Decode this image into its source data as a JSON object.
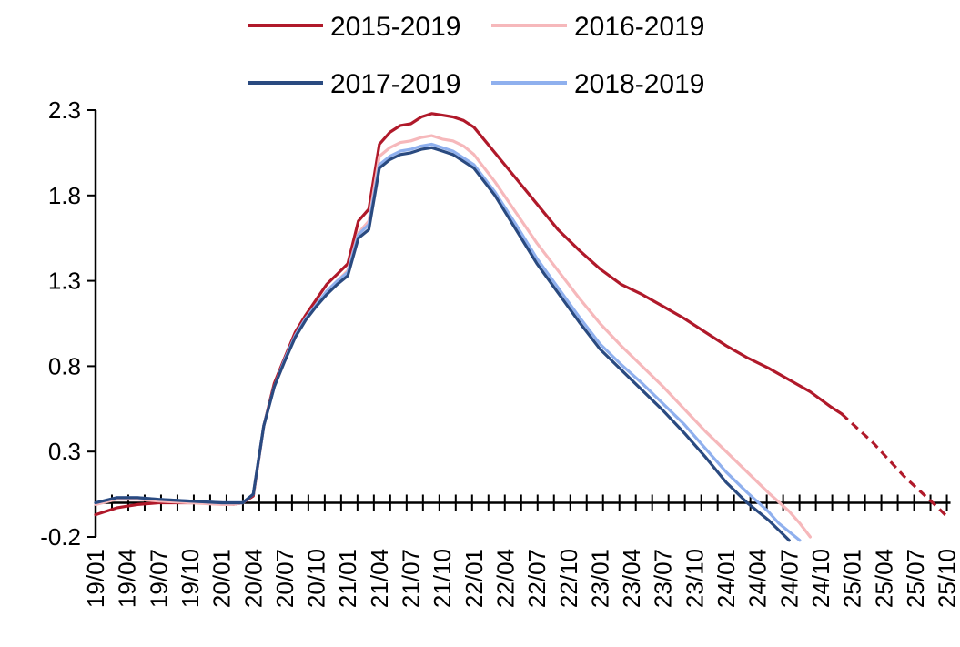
{
  "chart_data": {
    "type": "line",
    "title": "",
    "xlabel": "",
    "ylabel": "",
    "ylim": [
      -0.2,
      2.3
    ],
    "yticks": [
      "2.3",
      "1.8",
      "1.3",
      "0.8",
      "0.3",
      "-0.2"
    ],
    "ytick_values": [
      2.3,
      1.8,
      1.3,
      0.8,
      0.3,
      -0.2
    ],
    "xticks": [
      "19/01",
      "19/04",
      "19/07",
      "19/10",
      "20/01",
      "20/04",
      "20/07",
      "20/10",
      "21/01",
      "21/04",
      "21/07",
      "21/10",
      "22/01",
      "22/04",
      "22/07",
      "22/10",
      "23/01",
      "23/04",
      "23/07",
      "23/10",
      "24/01",
      "24/04",
      "24/07",
      "24/10",
      "25/01",
      "25/04",
      "25/07",
      "25/10"
    ],
    "xaxis_crosses_y": 0,
    "grid": false,
    "legend": "top",
    "x_unit": "months since 19/01",
    "series": [
      {
        "name": "2015-2019",
        "color": "#b0192a",
        "points": [
          [
            0,
            -0.07
          ],
          [
            1,
            -0.05
          ],
          [
            2,
            -0.03
          ],
          [
            3,
            -0.02
          ],
          [
            4,
            -0.01
          ],
          [
            6,
            0.0
          ],
          [
            9,
            0.0
          ],
          [
            12,
            0.0
          ],
          [
            13,
            -0.01
          ],
          [
            14,
            0.0
          ],
          [
            15,
            0.04
          ],
          [
            16,
            0.45
          ],
          [
            17,
            0.7
          ],
          [
            18,
            0.85
          ],
          [
            19,
            1.0
          ],
          [
            20,
            1.1
          ],
          [
            21,
            1.19
          ],
          [
            22,
            1.28
          ],
          [
            23,
            1.34
          ],
          [
            24,
            1.4
          ],
          [
            25,
            1.65
          ],
          [
            26,
            1.72
          ],
          [
            27,
            2.1
          ],
          [
            28,
            2.17
          ],
          [
            29,
            2.21
          ],
          [
            30,
            2.22
          ],
          [
            31,
            2.26
          ],
          [
            32,
            2.28
          ],
          [
            33,
            2.27
          ],
          [
            34,
            2.26
          ],
          [
            35,
            2.24
          ],
          [
            36,
            2.2
          ],
          [
            38,
            2.05
          ],
          [
            40,
            1.9
          ],
          [
            42,
            1.75
          ],
          [
            44,
            1.6
          ],
          [
            46,
            1.48
          ],
          [
            48,
            1.37
          ],
          [
            50,
            1.28
          ],
          [
            52,
            1.22
          ],
          [
            54,
            1.15
          ],
          [
            56,
            1.08
          ],
          [
            58,
            1.0
          ],
          [
            60,
            0.92
          ],
          [
            62,
            0.85
          ],
          [
            64,
            0.79
          ],
          [
            66,
            0.72
          ],
          [
            68,
            0.65
          ],
          [
            70,
            0.56
          ],
          [
            71,
            0.52
          ]
        ],
        "projection": [
          [
            71,
            0.52
          ],
          [
            74,
            0.35
          ],
          [
            77,
            0.15
          ],
          [
            80,
            -0.02
          ],
          [
            81,
            -0.08
          ]
        ]
      },
      {
        "name": "2016-2019",
        "color": "#f6b8bb",
        "points": [
          [
            0,
            -0.01
          ],
          [
            2,
            0.02
          ],
          [
            4,
            0.02
          ],
          [
            6,
            0.01
          ],
          [
            9,
            0.0
          ],
          [
            12,
            -0.01
          ],
          [
            13,
            -0.01
          ],
          [
            14,
            0.0
          ],
          [
            15,
            0.05
          ],
          [
            16,
            0.45
          ],
          [
            17,
            0.68
          ],
          [
            18,
            0.83
          ],
          [
            19,
            0.98
          ],
          [
            20,
            1.08
          ],
          [
            21,
            1.16
          ],
          [
            22,
            1.24
          ],
          [
            23,
            1.3
          ],
          [
            24,
            1.36
          ],
          [
            25,
            1.58
          ],
          [
            26,
            1.65
          ],
          [
            27,
            2.03
          ],
          [
            28,
            2.08
          ],
          [
            29,
            2.11
          ],
          [
            30,
            2.12
          ],
          [
            31,
            2.14
          ],
          [
            32,
            2.15
          ],
          [
            33,
            2.13
          ],
          [
            34,
            2.12
          ],
          [
            35,
            2.09
          ],
          [
            36,
            2.04
          ],
          [
            38,
            1.88
          ],
          [
            40,
            1.7
          ],
          [
            42,
            1.52
          ],
          [
            44,
            1.36
          ],
          [
            46,
            1.2
          ],
          [
            48,
            1.05
          ],
          [
            50,
            0.92
          ],
          [
            52,
            0.8
          ],
          [
            54,
            0.68
          ],
          [
            56,
            0.55
          ],
          [
            58,
            0.42
          ],
          [
            60,
            0.3
          ],
          [
            62,
            0.18
          ],
          [
            64,
            0.06
          ],
          [
            66,
            -0.05
          ],
          [
            67,
            -0.12
          ],
          [
            68,
            -0.2
          ]
        ]
      },
      {
        "name": "2017-2019",
        "color": "#2a4a80",
        "points": [
          [
            0,
            0.0
          ],
          [
            2,
            0.03
          ],
          [
            4,
            0.03
          ],
          [
            6,
            0.02
          ],
          [
            9,
            0.01
          ],
          [
            12,
            0.0
          ],
          [
            13,
            0.0
          ],
          [
            14,
            0.0
          ],
          [
            15,
            0.05
          ],
          [
            16,
            0.45
          ],
          [
            17,
            0.68
          ],
          [
            18,
            0.83
          ],
          [
            19,
            0.97
          ],
          [
            20,
            1.07
          ],
          [
            21,
            1.15
          ],
          [
            22,
            1.22
          ],
          [
            23,
            1.28
          ],
          [
            24,
            1.33
          ],
          [
            25,
            1.55
          ],
          [
            26,
            1.6
          ],
          [
            27,
            1.96
          ],
          [
            28,
            2.01
          ],
          [
            29,
            2.04
          ],
          [
            30,
            2.05
          ],
          [
            31,
            2.07
          ],
          [
            32,
            2.08
          ],
          [
            33,
            2.06
          ],
          [
            34,
            2.04
          ],
          [
            35,
            2.0
          ],
          [
            36,
            1.96
          ],
          [
            38,
            1.8
          ],
          [
            40,
            1.6
          ],
          [
            42,
            1.4
          ],
          [
            44,
            1.23
          ],
          [
            46,
            1.06
          ],
          [
            48,
            0.9
          ],
          [
            50,
            0.78
          ],
          [
            52,
            0.66
          ],
          [
            54,
            0.54
          ],
          [
            56,
            0.41
          ],
          [
            58,
            0.27
          ],
          [
            60,
            0.12
          ],
          [
            62,
            0.0
          ],
          [
            64,
            -0.1
          ],
          [
            65,
            -0.16
          ],
          [
            66,
            -0.22
          ]
        ]
      },
      {
        "name": "2018-2019",
        "color": "#8fb0ee",
        "points": [
          [
            0,
            0.0
          ],
          [
            2,
            0.03
          ],
          [
            4,
            0.03
          ],
          [
            6,
            0.02
          ],
          [
            9,
            0.01
          ],
          [
            12,
            0.0
          ],
          [
            13,
            0.0
          ],
          [
            14,
            0.0
          ],
          [
            15,
            0.05
          ],
          [
            16,
            0.45
          ],
          [
            17,
            0.68
          ],
          [
            18,
            0.84
          ],
          [
            19,
            0.98
          ],
          [
            20,
            1.08
          ],
          [
            21,
            1.16
          ],
          [
            22,
            1.24
          ],
          [
            23,
            1.3
          ],
          [
            24,
            1.35
          ],
          [
            25,
            1.57
          ],
          [
            26,
            1.63
          ],
          [
            27,
            1.98
          ],
          [
            28,
            2.03
          ],
          [
            29,
            2.06
          ],
          [
            30,
            2.07
          ],
          [
            31,
            2.09
          ],
          [
            32,
            2.1
          ],
          [
            33,
            2.08
          ],
          [
            34,
            2.06
          ],
          [
            35,
            2.02
          ],
          [
            36,
            1.98
          ],
          [
            38,
            1.82
          ],
          [
            40,
            1.63
          ],
          [
            42,
            1.43
          ],
          [
            44,
            1.26
          ],
          [
            46,
            1.09
          ],
          [
            48,
            0.93
          ],
          [
            50,
            0.81
          ],
          [
            52,
            0.7
          ],
          [
            54,
            0.58
          ],
          [
            56,
            0.46
          ],
          [
            58,
            0.32
          ],
          [
            60,
            0.18
          ],
          [
            62,
            0.06
          ],
          [
            64,
            -0.05
          ],
          [
            65,
            -0.12
          ],
          [
            67,
            -0.22
          ]
        ]
      }
    ]
  }
}
